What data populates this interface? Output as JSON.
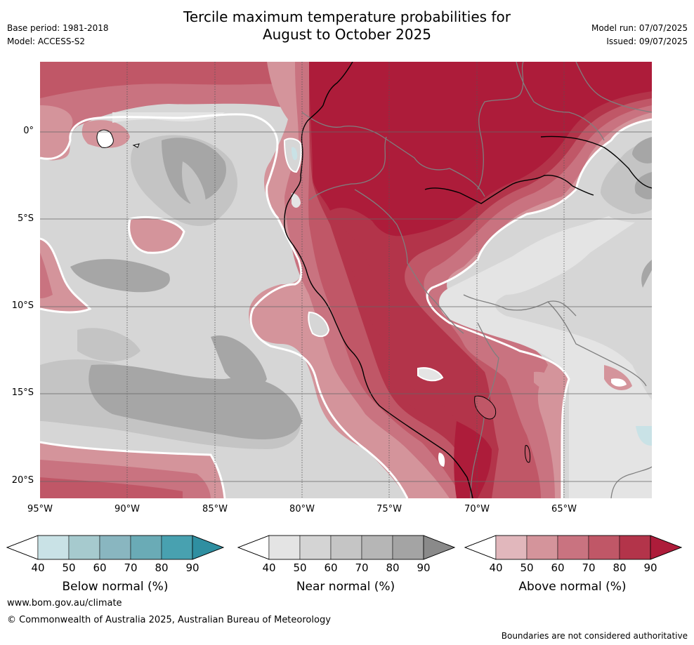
{
  "header": {
    "title_line1": "Tercile maximum temperature probabilities for",
    "title_line2": "August to October 2025",
    "base_period": "Base period: 1981-2018",
    "model": "Model: ACCESS-S2",
    "model_run": "Model run: 07/07/2025",
    "issued": "Issued: 09/07/2025"
  },
  "map": {
    "lat_labels": [
      "0°",
      "5°S",
      "10°S",
      "15°S",
      "20°S"
    ],
    "lon_labels": [
      "95°W",
      "90°W",
      "85°W",
      "80°W",
      "75°W",
      "70°W",
      "65°W"
    ],
    "region": "Eastern tropical Pacific and western South America"
  },
  "colorbars": [
    {
      "label": "Below normal (%)",
      "ticks": [
        "40",
        "50",
        "60",
        "70",
        "80",
        "90"
      ],
      "colors": [
        "#c9e2e6",
        "#a6cace",
        "#89b6c0",
        "#6aabb6",
        "#48a1b0",
        "#2f8fa1"
      ]
    },
    {
      "label": "Near normal (%)",
      "ticks": [
        "40",
        "50",
        "60",
        "70",
        "80",
        "90"
      ],
      "colors": [
        "#e4e4e4",
        "#d4d4d4",
        "#c5c5c5",
        "#b6b6b6",
        "#a4a4a4",
        "#8a8a8a"
      ]
    },
    {
      "label": "Above normal (%)",
      "ticks": [
        "40",
        "50",
        "60",
        "70",
        "80",
        "90"
      ],
      "colors": [
        "#e1b7bc",
        "#d4949b",
        "#c97380",
        "#c05767",
        "#b3344a",
        "#ad1c3a"
      ]
    }
  ],
  "footer": {
    "website": "www.bom.gov.au/climate",
    "copyright": "© Commonwealth of Australia 2025, Australian Bureau of Meteorology",
    "disclaimer": "Boundaries are not considered authoritative"
  }
}
